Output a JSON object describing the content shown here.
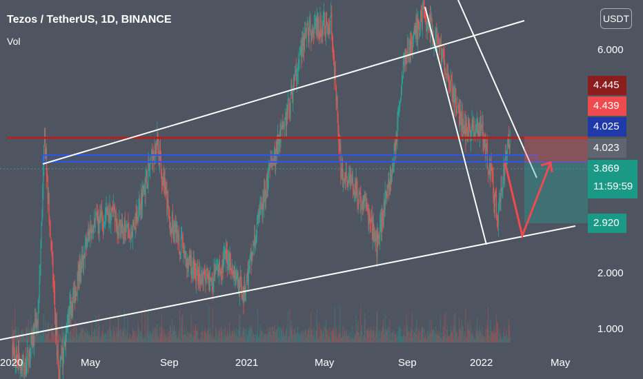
{
  "header": {
    "title": "Tezos / TetherUS, 1D, BINANCE",
    "subtitle": "Vol",
    "currency_button": "USDT"
  },
  "price_axis": {
    "labels": [
      "6.000",
      "2.000",
      "1.000"
    ]
  },
  "time_axis": {
    "labels": [
      "2020",
      "May",
      "Sep",
      "2021",
      "May",
      "Sep",
      "2022",
      "May"
    ]
  },
  "price_tags": [
    {
      "text": "4.445",
      "color": "#8b1d1d"
    },
    {
      "text": "4.439",
      "color": "#ef4a4e"
    },
    {
      "text": "4.025",
      "color": "#1f3aa8"
    },
    {
      "text": "4.023",
      "color": "#5e6570"
    },
    {
      "text": "3.869",
      "text2": "11:59:59",
      "color": "#1a9a86"
    },
    {
      "text": "2.920",
      "color": "#1a9a86"
    }
  ],
  "colors": {
    "background": "#4e5560",
    "up": "#26a69a",
    "down": "#ef5350",
    "resistance": "#b41e1e",
    "zone": "#2b56e8",
    "trend": "#ffffff"
  },
  "chart_data": {
    "type": "candlestick",
    "symbol": "XTZUSDT",
    "interval": "1D",
    "exchange": "BINANCE",
    "y_scale": "log",
    "last_price": 3.869,
    "countdown": "11:59:59",
    "price_path": [
      [
        "2020-01",
        1.4
      ],
      [
        "2020-01-20",
        1.25
      ],
      [
        "2020-02-10",
        1.6
      ],
      [
        "2020-02-20",
        3.9
      ],
      [
        "2020-03-13",
        1.2
      ],
      [
        "2020-04-01",
        1.7
      ],
      [
        "2020-05-01",
        2.5
      ],
      [
        "2020-06-01",
        2.7
      ],
      [
        "2020-07-01",
        2.4
      ],
      [
        "2020-08-13",
        3.8
      ],
      [
        "2020-09-01",
        2.6
      ],
      [
        "2020-10-01",
        2.1
      ],
      [
        "2020-11-01",
        1.9
      ],
      [
        "2020-12-01",
        2.2
      ],
      [
        "2020-12-25",
        1.8
      ],
      [
        "2021-02-01",
        3.2
      ],
      [
        "2021-03-01",
        4.3
      ],
      [
        "2021-04-01",
        6.6
      ],
      [
        "2021-05-10",
        6.9
      ],
      [
        "2021-05-25",
        3.4
      ],
      [
        "2021-07-01",
        2.8
      ],
      [
        "2021-07-20",
        2.3
      ],
      [
        "2021-08-15",
        3.5
      ],
      [
        "2021-09-01",
        5.8
      ],
      [
        "2021-10-01",
        7.2
      ],
      [
        "2021-11-01",
        5.8
      ],
      [
        "2021-12-01",
        4.1
      ],
      [
        "2022-01-01",
        4.0
      ],
      [
        "2022-01-24",
        2.7
      ],
      [
        "2022-02-10",
        3.9
      ]
    ],
    "levels": [
      4.445,
      4.439,
      4.025,
      4.023,
      3.869,
      2.92
    ],
    "annotations": [
      "ascending channel",
      "falling wedge",
      "resistance zone",
      "projected path to 2.920 then 4.025"
    ]
  }
}
